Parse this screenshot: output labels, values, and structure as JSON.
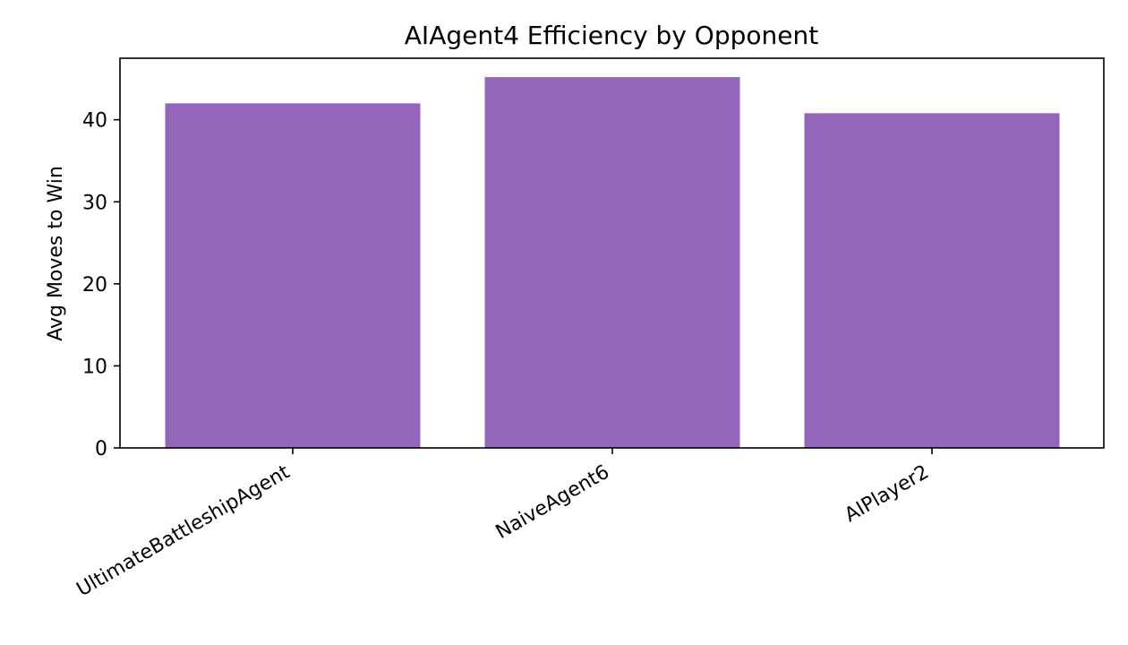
{
  "chart_data": {
    "type": "bar",
    "title": "AIAgent4 Efficiency by Opponent",
    "xlabel": "",
    "ylabel": "Avg Moves to Win",
    "categories": [
      "UltimateBattleshipAgent",
      "NaiveAgent6",
      "AIPlayer2"
    ],
    "values": [
      42.0,
      45.2,
      40.8
    ],
    "ylim": [
      0,
      47.5
    ],
    "yticks": [
      0,
      10,
      20,
      30,
      40
    ],
    "bar_color": "#9467bd",
    "grid": false,
    "legend": "none"
  }
}
